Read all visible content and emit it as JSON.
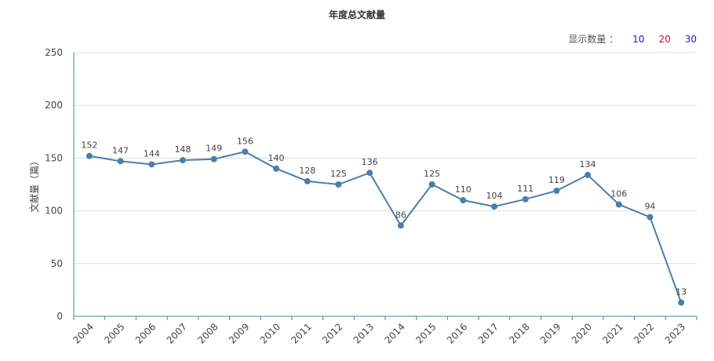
{
  "title": "年度总文献量",
  "display_count": {
    "label": "显示数量 ：",
    "options": [
      {
        "label": "10",
        "color": "#1a1ab5"
      },
      {
        "label": "20",
        "color": "#cc1111"
      },
      {
        "label": "30",
        "color": "#1a1ab5"
      }
    ]
  },
  "colors": {
    "line": "#4a7eab",
    "axis": "#3a8f8f",
    "grid": "#dddddd",
    "text": "#444444"
  },
  "chart_data": {
    "type": "line",
    "title": "年度总文献量",
    "xlabel": "",
    "ylabel": "文献量（篇）",
    "ylim": [
      0,
      250
    ],
    "yticks": [
      "0",
      "50",
      "100",
      "150",
      "200",
      "250"
    ],
    "grid": true,
    "categories": [
      "2004",
      "2005",
      "2006",
      "2007",
      "2008",
      "2009",
      "2010",
      "2011",
      "2012",
      "2013",
      "2014",
      "2015",
      "2016",
      "2017",
      "2018",
      "2019",
      "2020",
      "2021",
      "2022",
      "2023"
    ],
    "series": [
      {
        "values": [
          152,
          147,
          144,
          148,
          149,
          156,
          140,
          128,
          125,
          136,
          86,
          125,
          110,
          104,
          111,
          119,
          134,
          106,
          94,
          13
        ]
      }
    ]
  }
}
